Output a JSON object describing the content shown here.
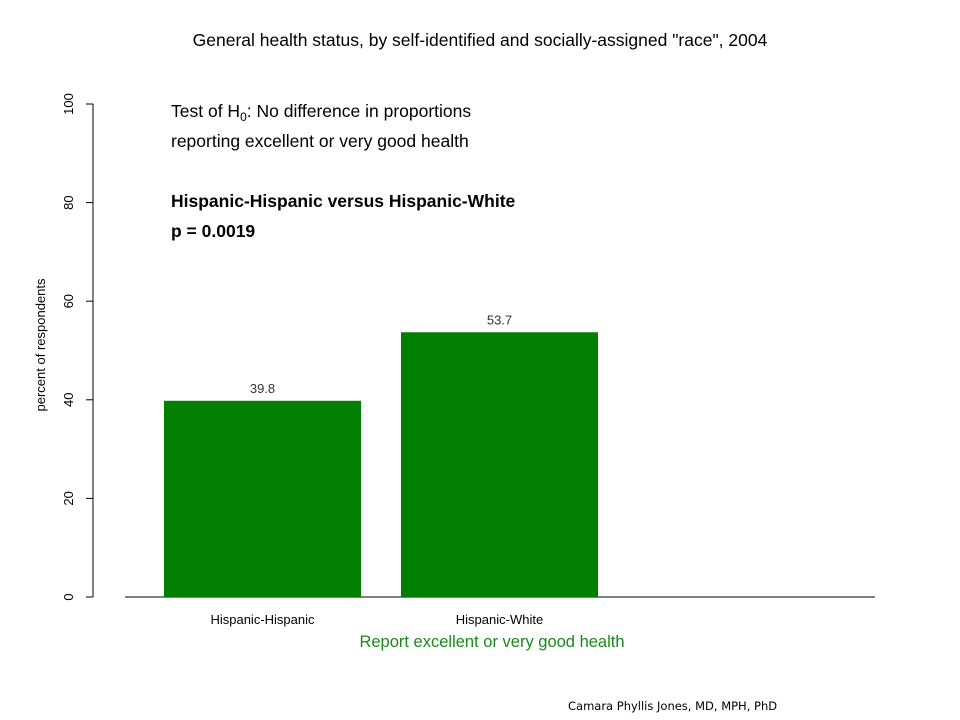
{
  "chart_data": {
    "type": "bar",
    "title": "General health status, by self-identified and socially-assigned \"race\", 2004",
    "xlabel": "Report excellent or very good health",
    "ylabel": "percent of respondents",
    "categories": [
      "Hispanic-Hispanic",
      "Hispanic-White"
    ],
    "values": [
      39.8,
      53.7
    ],
    "value_labels": [
      "39.8",
      "53.7"
    ],
    "ylim": [
      0,
      100
    ],
    "yticks": [
      0,
      20,
      40,
      60,
      80,
      100
    ],
    "bar_color": "#007f00",
    "xlabel_color": "#1a8a1a",
    "grid": false,
    "annotation": {
      "line1_prefix": "Test of H",
      "line1_sub": "0",
      "line1_suffix": ":  No difference in proportions",
      "line2": "reporting excellent or very good health",
      "line3": "Hispanic-Hispanic versus Hispanic-White",
      "line4": "p = 0.0019"
    }
  },
  "credit": "Camara Phyllis Jones, MD, MPH, PhD"
}
